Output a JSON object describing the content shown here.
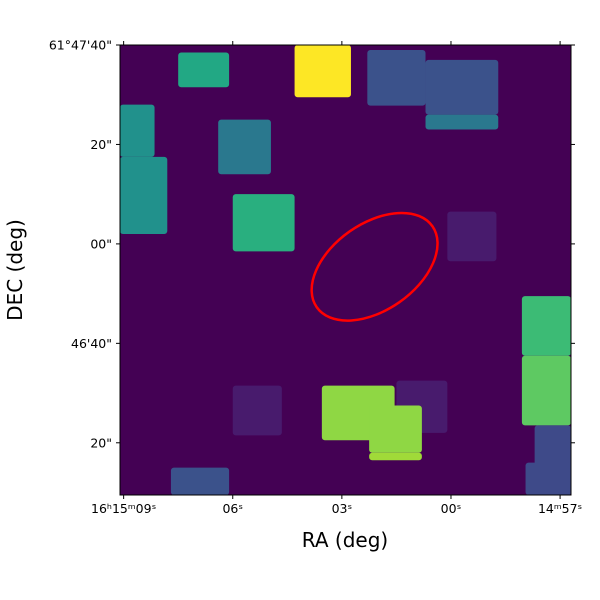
{
  "chart_data": {
    "type": "heatmap",
    "title": "",
    "xlabel": "RA (deg)",
    "ylabel": "DEC (deg)",
    "colormap": "viridis",
    "background_color": "#440154",
    "x_ticks": [
      {
        "label": "16ʰ15ᵐ09ˢ",
        "ra_sec": 9
      },
      {
        "label": "06ˢ",
        "ra_sec": 6
      },
      {
        "label": "03ˢ",
        "ra_sec": 3
      },
      {
        "label": "00ˢ",
        "ra_sec": 0
      },
      {
        "label": "14ᵐ57ˢ",
        "ra_sec": -3
      }
    ],
    "y_ticks": [
      {
        "label": "61°47'40\"",
        "dec_arcsec_offset": 40
      },
      {
        "label": "20\"",
        "dec_arcsec_offset": 20
      },
      {
        "label": "00\"",
        "dec_arcsec_offset": 0
      },
      {
        "label": "46'40\"",
        "dec_arcsec_offset": -20
      },
      {
        "label": "20\"",
        "dec_arcsec_offset": -40
      }
    ],
    "x_range_ra_sec": [
      9.1,
      -3.3
    ],
    "y_range_dec_arcsec": [
      40.0,
      -50.5
    ],
    "patches": [
      {
        "name": "patch-1",
        "ra_sec": [
          7.5,
          6.1
        ],
        "dec_arcsec": [
          38.5,
          31.5
        ],
        "color": "#22a884"
      },
      {
        "name": "patch-2",
        "ra_sec": [
          4.3,
          2.75
        ],
        "dec_arcsec": [
          40.0,
          29.5
        ],
        "color": "#fde725"
      },
      {
        "name": "patch-3",
        "ra_sec": [
          2.3,
          0.7
        ],
        "dec_arcsec": [
          39.0,
          27.8
        ],
        "color": "#3b528b"
      },
      {
        "name": "patch-4",
        "ra_sec": [
          0.7,
          -1.3
        ],
        "dec_arcsec": [
          37.0,
          26.0
        ],
        "color": "#3b528b"
      },
      {
        "name": "patch-5",
        "ra_sec": [
          0.7,
          -1.3
        ],
        "dec_arcsec": [
          26.0,
          23.0
        ],
        "color": "#2a788e"
      },
      {
        "name": "patch-6",
        "ra_sec": [
          9.1,
          8.15
        ],
        "dec_arcsec": [
          28.0,
          17.5
        ],
        "color": "#21918c"
      },
      {
        "name": "patch-7",
        "ra_sec": [
          9.1,
          7.8
        ],
        "dec_arcsec": [
          17.5,
          2.0
        ],
        "color": "#21918c"
      },
      {
        "name": "patch-8",
        "ra_sec": [
          6.4,
          4.95
        ],
        "dec_arcsec": [
          25.0,
          14.0
        ],
        "color": "#2a788e"
      },
      {
        "name": "patch-9",
        "ra_sec": [
          6.0,
          4.3
        ],
        "dec_arcsec": [
          10.0,
          -1.5
        ],
        "color": "#29af7f"
      },
      {
        "name": "patch-10",
        "ra_sec": [
          0.1,
          -1.25
        ],
        "dec_arcsec": [
          6.5,
          -3.5
        ],
        "color": "#481b6d"
      },
      {
        "name": "patch-11",
        "ra_sec": [
          6.0,
          4.65
        ],
        "dec_arcsec": [
          -38.5,
          -28.5
        ],
        "color": "#481b6d"
      },
      {
        "name": "patch-12",
        "ra_sec": [
          1.5,
          0.1
        ],
        "dec_arcsec": [
          -38.0,
          -27.5
        ],
        "color": "#481b6d"
      },
      {
        "name": "patch-13",
        "ra_sec": [
          -1.95,
          -3.3
        ],
        "dec_arcsec": [
          -22.5,
          -10.5
        ],
        "color": "#3cbb75"
      },
      {
        "name": "patch-14",
        "ra_sec": [
          -1.95,
          -3.3
        ],
        "dec_arcsec": [
          -36.5,
          -22.5
        ],
        "color": "#5ec962"
      },
      {
        "name": "patch-15",
        "ra_sec": [
          3.55,
          1.55
        ],
        "dec_arcsec": [
          -39.5,
          -28.5
        ],
        "color": "#8fd744"
      },
      {
        "name": "patch-16",
        "ra_sec": [
          2.25,
          0.8
        ],
        "dec_arcsec": [
          -42.0,
          -32.5
        ],
        "color": "#8fd744"
      },
      {
        "name": "patch-17",
        "ra_sec": [
          2.25,
          0.8
        ],
        "dec_arcsec": [
          -43.5,
          -42.0
        ],
        "color": "#a0da39"
      },
      {
        "name": "patch-18",
        "ra_sec": [
          -2.3,
          -3.3
        ],
        "dec_arcsec": [
          -50.5,
          -36.5
        ],
        "color": "#3e4a89"
      },
      {
        "name": "patch-19",
        "ra_sec": [
          7.7,
          6.1
        ],
        "dec_arcsec": [
          -50.5,
          -45.0
        ],
        "color": "#3b528b"
      },
      {
        "name": "patch-20",
        "ra_sec": [
          -2.05,
          -3.3
        ],
        "dec_arcsec": [
          -50.5,
          -44.0
        ],
        "color": "#3e4a89"
      }
    ],
    "ellipse": {
      "center_ra_sec": 2.1,
      "center_dec_arcsec": -4.6,
      "semi_major_arcsec": 14.2,
      "semi_minor_arcsec": 8.7,
      "angle_deg": -35,
      "color": "#ff0000"
    }
  }
}
